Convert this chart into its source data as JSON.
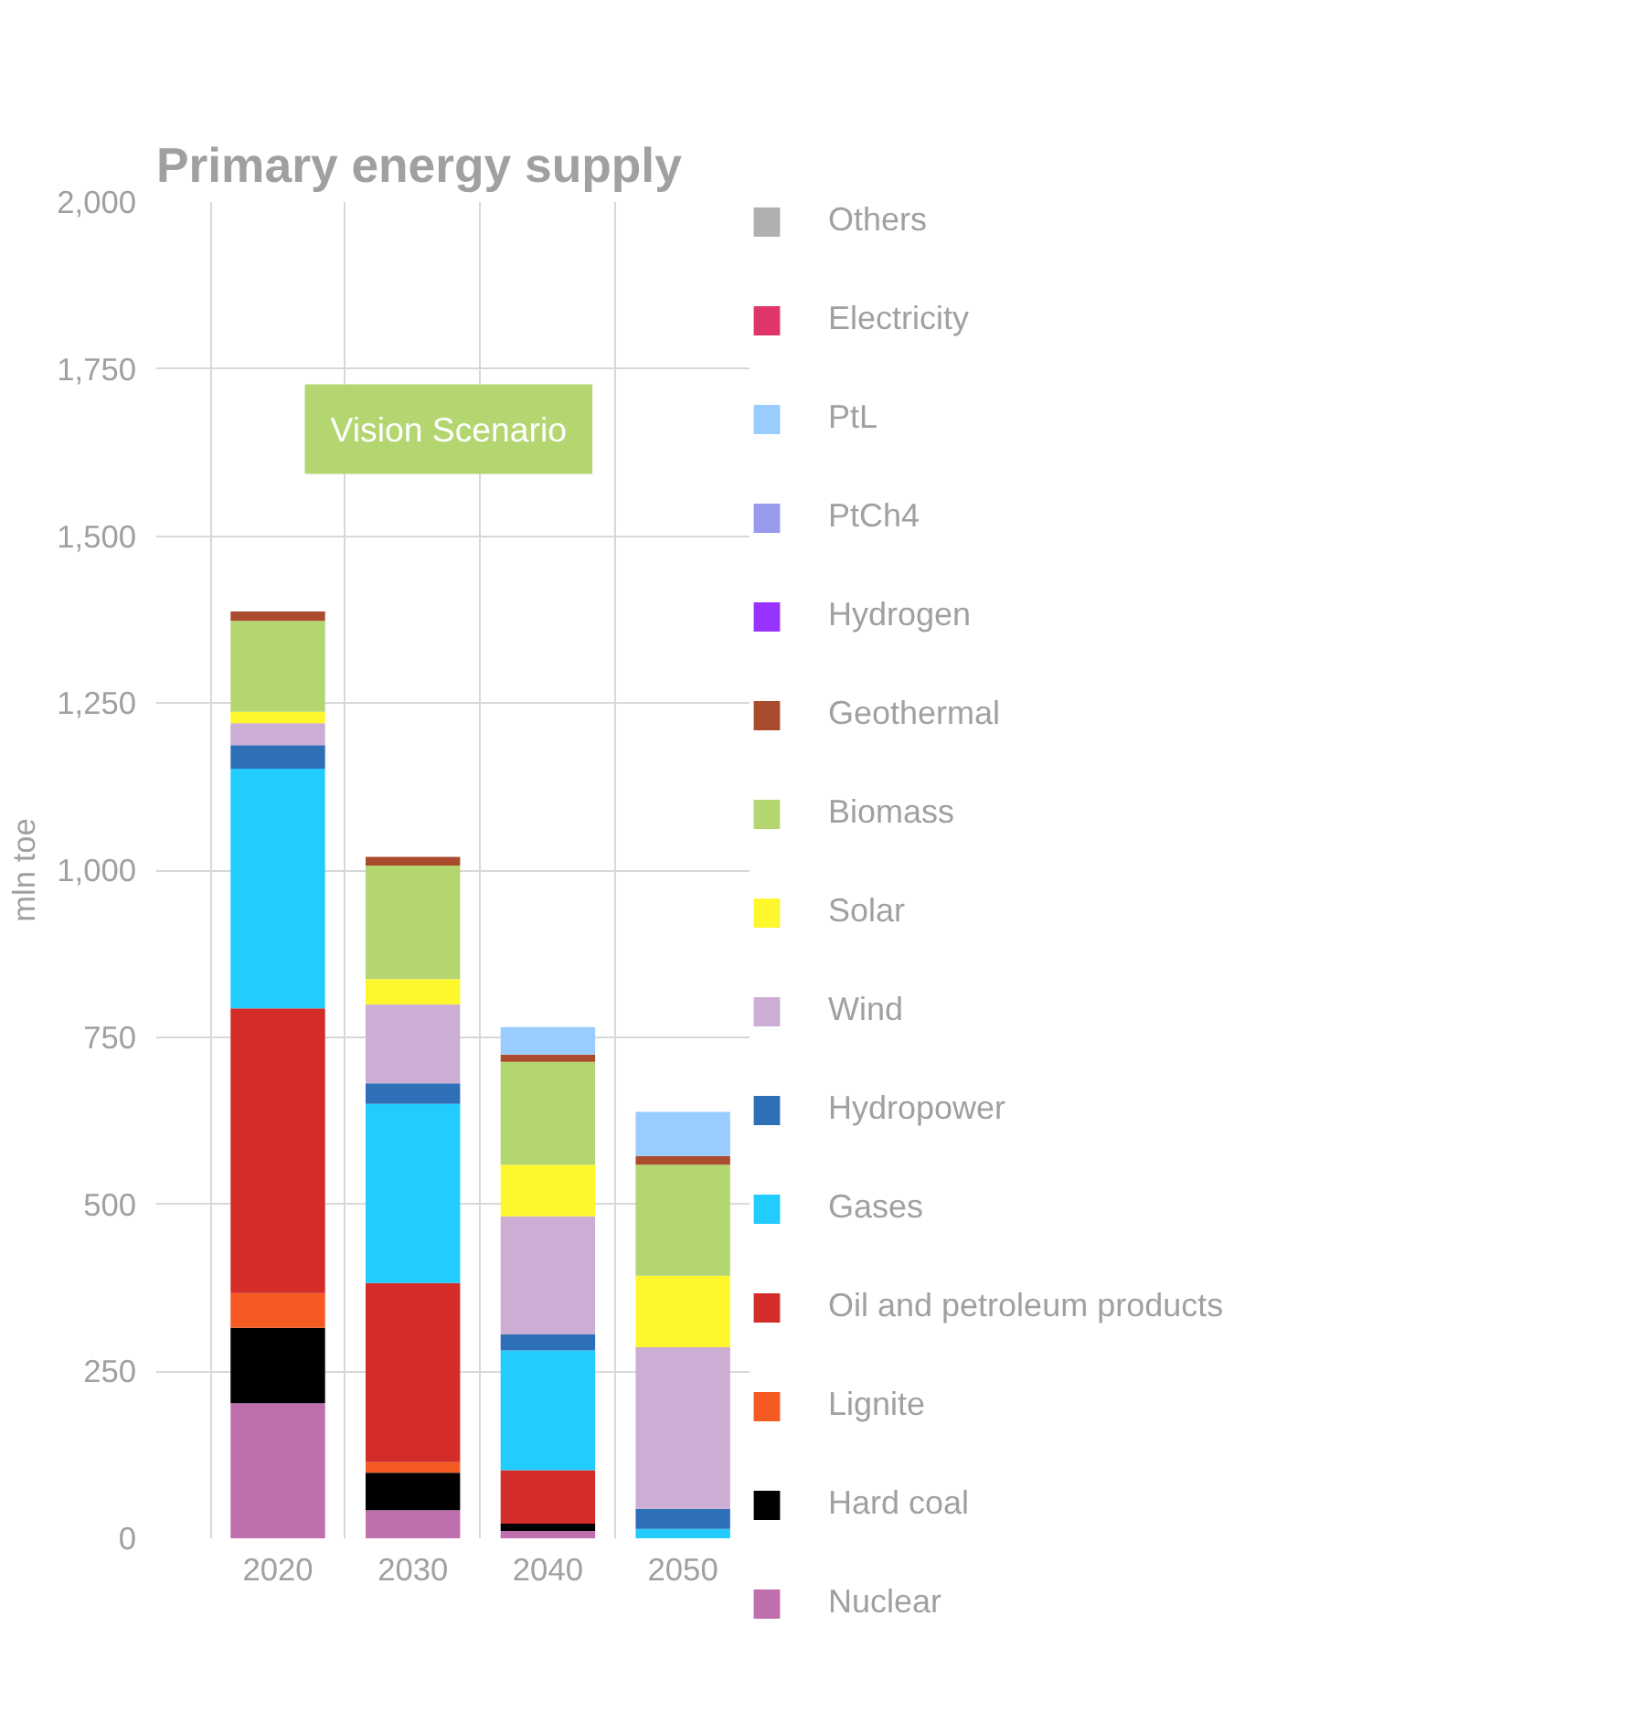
{
  "chart_data": {
    "type": "bar",
    "title": "Primary energy supply",
    "ylabel": "mln toe",
    "categories": [
      "2020",
      "2030",
      "2040",
      "2050"
    ],
    "stacked": true,
    "ylim": [
      0,
      2000
    ],
    "yticks": [
      {
        "value": 0,
        "label": "0"
      },
      {
        "value": 250,
        "label": "250"
      },
      {
        "value": 500,
        "label": "500"
      },
      {
        "value": 750,
        "label": "750"
      },
      {
        "value": 1000,
        "label": "1,000"
      },
      {
        "value": 1250,
        "label": "1,250"
      },
      {
        "value": 1500,
        "label": "1,500"
      },
      {
        "value": 1750,
        "label": "1,750"
      },
      {
        "value": 2000,
        "label": "2,000"
      }
    ],
    "grid": true,
    "legend": "right",
    "annotations": [
      "Vision Scenario"
    ],
    "series": [
      {
        "name": "Nuclear",
        "color": "#bf6fae",
        "values": [
          202,
          42,
          11,
          0
        ]
      },
      {
        "name": "Hard coal",
        "color": "#000000",
        "values": [
          113,
          56,
          11,
          0
        ]
      },
      {
        "name": "Lignite",
        "color": "#f45a22",
        "values": [
          52,
          16,
          0,
          0
        ]
      },
      {
        "name": "Oil and petroleum products",
        "color": "#d42c29",
        "values": [
          426,
          268,
          80,
          0
        ]
      },
      {
        "name": "Gases",
        "color": "#22ccff",
        "values": [
          359,
          268,
          179,
          14
        ]
      },
      {
        "name": "Hydropower",
        "color": "#2d70b7",
        "values": [
          35,
          31,
          24,
          30
        ]
      },
      {
        "name": "Wind",
        "color": "#ccadd3",
        "values": [
          33,
          118,
          177,
          242
        ]
      },
      {
        "name": "Solar",
        "color": "#fff72e",
        "values": [
          17,
          38,
          77,
          107
        ]
      },
      {
        "name": "Biomass",
        "color": "#b3d670",
        "values": [
          136,
          170,
          154,
          166
        ]
      },
      {
        "name": "Geothermal",
        "color": "#a94b2c",
        "values": [
          14,
          13,
          11,
          13
        ]
      },
      {
        "name": "Hydrogen",
        "color": "#9933ff",
        "values": [
          0,
          0,
          0,
          0
        ]
      },
      {
        "name": "PtCh4",
        "color": "#9999ee",
        "values": [
          0,
          0,
          0,
          0
        ]
      },
      {
        "name": "PtL",
        "color": "#99ccff",
        "values": [
          0,
          0,
          41,
          66
        ]
      },
      {
        "name": "Electricity",
        "color": "#e0356a",
        "values": [
          0,
          0,
          0,
          0
        ]
      },
      {
        "name": "Others",
        "color": "#b0b0b0",
        "values": [
          0,
          0,
          0,
          0
        ]
      }
    ]
  }
}
